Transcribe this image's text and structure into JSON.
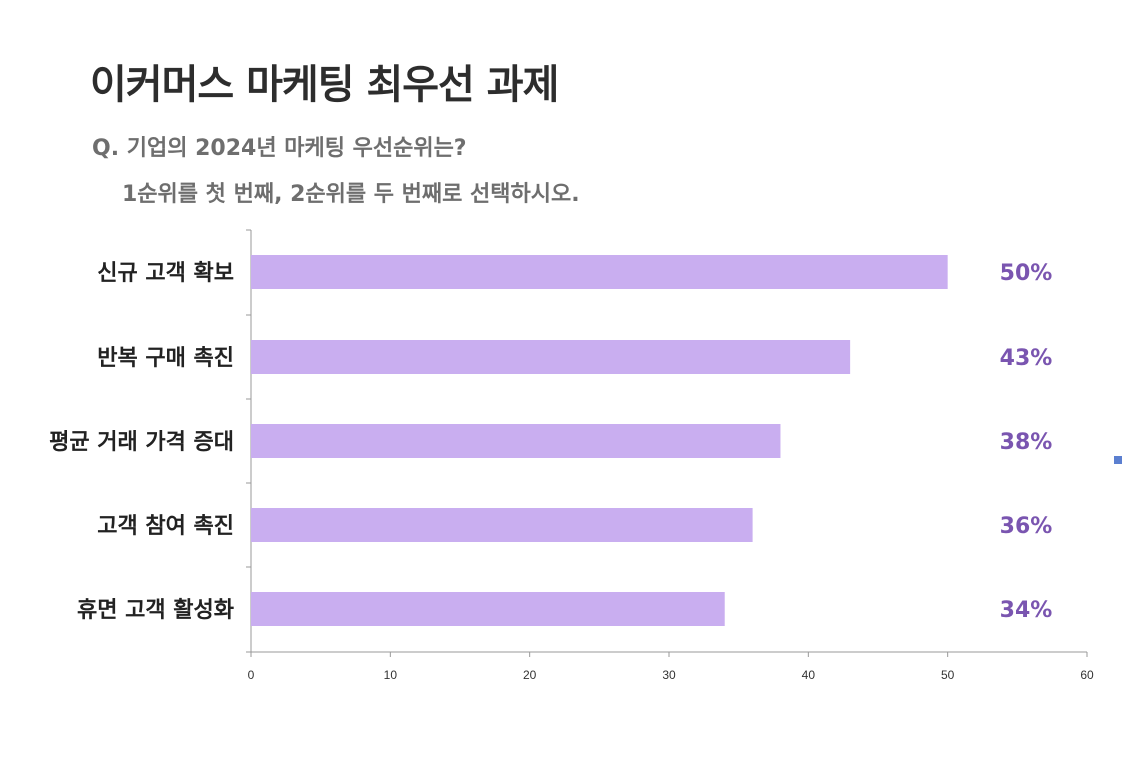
{
  "header": {
    "title": "이커머스 마케팅 최우선 과제",
    "question_line1": "Q. 기업의 2024년 마케팅 우선순위는?",
    "question_line2": "1순위를 첫 번째, 2순위를 두 번째로 선택하시오."
  },
  "colors": {
    "bar": "#c9aef0",
    "value_label": "#7a55b0",
    "axis": "#999999",
    "legend_marker": "#5b7fd0"
  },
  "legend": {
    "marker_icon": "square-marker-icon"
  },
  "chart_data": {
    "type": "bar",
    "orientation": "horizontal",
    "categories": [
      "신규 고객 확보",
      "반복 구매 촉진",
      "평균 거래 가격 증대",
      "고객 참여 촉진",
      "휴면 고객 활성화"
    ],
    "values": [
      50,
      43,
      38,
      36,
      34
    ],
    "value_labels": [
      "50%",
      "43%",
      "38%",
      "36%",
      "34%"
    ],
    "xlim": [
      0,
      60
    ],
    "xticks": [
      "0",
      "10",
      "20",
      "30",
      "40",
      "50",
      "60"
    ],
    "grid": false,
    "title": "",
    "xlabel": "",
    "ylabel": ""
  }
}
